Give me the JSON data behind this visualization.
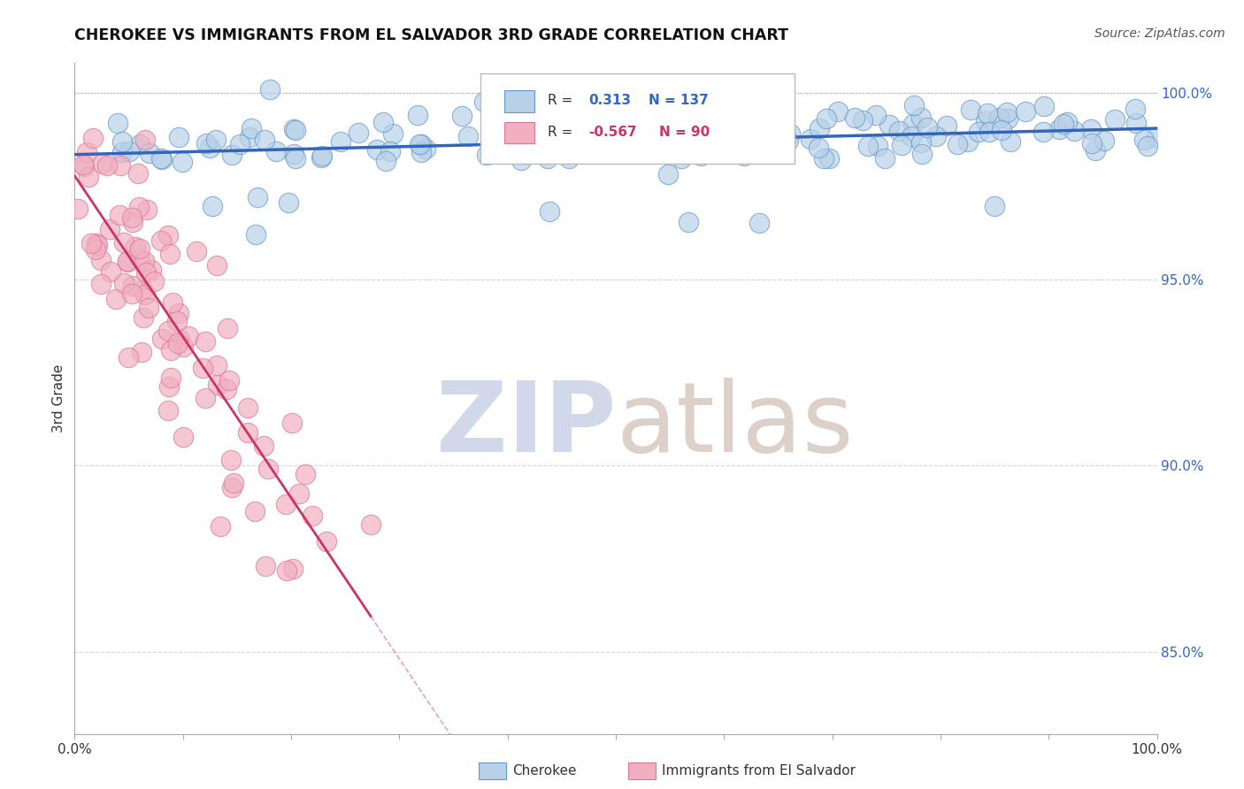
{
  "title": "CHEROKEE VS IMMIGRANTS FROM EL SALVADOR 3RD GRADE CORRELATION CHART",
  "source": "Source: ZipAtlas.com",
  "ylabel": "3rd Grade",
  "blue_color": "#b8d0e8",
  "blue_edge": "#6699cc",
  "blue_line": "#3366bb",
  "pink_color": "#f0b0c0",
  "pink_edge": "#dd7799",
  "pink_line": "#cc3366",
  "watermark_zip_color": "#d0d8ea",
  "watermark_atlas_color": "#ddd0c8",
  "xmin": 0.0,
  "xmax": 1.0,
  "ymin": 0.828,
  "ymax": 1.008,
  "yticks": [
    0.85,
    0.9,
    0.95,
    1.0
  ],
  "ytick_labels": [
    "85.0%",
    "90.0%",
    "95.0%",
    "100.0%"
  ],
  "grid_color": "#cccccc",
  "bg_color": "#ffffff",
  "title_fontsize": 13,
  "blue_r_color": "#3366cc",
  "pink_r_color": "#cc3366",
  "legend_blue_r": "0.313",
  "legend_blue_n": "137",
  "legend_pink_r": "-0.567",
  "legend_pink_n": "90"
}
